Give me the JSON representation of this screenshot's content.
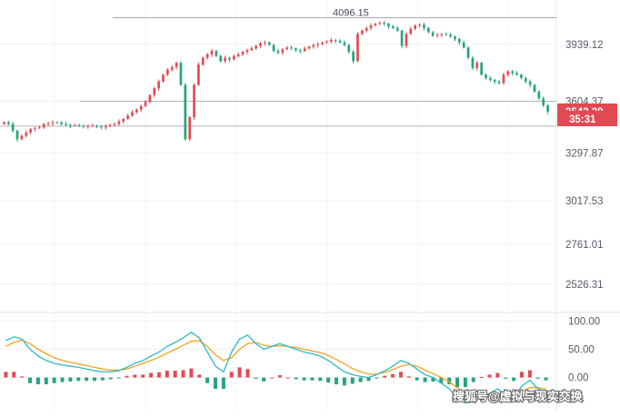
{
  "chart_data": [
    {
      "type": "candlestick",
      "panel": "price",
      "y_axis": {
        "ticks": [
          "3939.12",
          "3604.37",
          "3297.87",
          "3017.53",
          "2761.01",
          "2526.31"
        ],
        "tick_values": [
          3939.12,
          3604.37,
          3297.87,
          3017.53,
          2761.01,
          2526.31
        ],
        "range": [
          2360,
          4200
        ],
        "position": "right"
      },
      "annotations": {
        "high_label": "4096.15",
        "high_value": 4096.15,
        "price_line_value": 3604.37,
        "support_value": 3457
      },
      "last_price": {
        "label": "3542.39",
        "value": 3542.39,
        "color": "#e24a52"
      },
      "countdown": {
        "label": "35:31",
        "color": "#e24a52"
      },
      "up_color": "#e24a52",
      "down_color": "#27a37f",
      "closes": [
        3480,
        3470,
        3430,
        3380,
        3400,
        3420,
        3440,
        3445,
        3450,
        3470,
        3475,
        3480,
        3478,
        3470,
        3465,
        3460,
        3462,
        3460,
        3456,
        3458,
        3460,
        3455,
        3450,
        3458,
        3465,
        3470,
        3485,
        3500,
        3520,
        3540,
        3555,
        3575,
        3600,
        3640,
        3680,
        3720,
        3760,
        3790,
        3805,
        3830,
        3700,
        3380,
        3510,
        3700,
        3820,
        3860,
        3880,
        3900,
        3870,
        3840,
        3860,
        3850,
        3870,
        3880,
        3895,
        3905,
        3915,
        3930,
        3945,
        3950,
        3935,
        3900,
        3890,
        3910,
        3920,
        3915,
        3905,
        3900,
        3915,
        3925,
        3935,
        3940,
        3950,
        3955,
        3965,
        3960,
        3950,
        3935,
        3895,
        3840,
        4000,
        4020,
        4035,
        4050,
        4060,
        4065,
        4060,
        4045,
        4035,
        4020,
        3930,
        4000,
        4030,
        4050,
        4055,
        4035,
        4010,
        3990,
        3995,
        4000,
        3995,
        3985,
        3970,
        3950,
        3920,
        3860,
        3800,
        3830,
        3760,
        3740,
        3730,
        3720,
        3710,
        3760,
        3780,
        3770,
        3760,
        3740,
        3720,
        3700,
        3660,
        3620,
        3580,
        3542.39
      ]
    },
    {
      "type": "line",
      "panel": "oscillator",
      "y_axis": {
        "ticks": [
          "100.00",
          "50.00",
          "0.00"
        ],
        "tick_values": [
          100,
          50,
          0
        ],
        "range": [
          -60,
          115
        ],
        "position": "right"
      },
      "series": [
        {
          "color": "#31b8c6",
          "values": [
            65,
            72,
            68,
            50,
            38,
            30,
            25,
            22,
            20,
            18,
            15,
            12,
            10,
            10,
            12,
            18,
            25,
            30,
            38,
            45,
            55,
            62,
            70,
            80,
            70,
            45,
            20,
            10,
            45,
            68,
            75,
            60,
            50,
            55,
            60,
            55,
            50,
            45,
            42,
            38,
            30,
            20,
            10,
            5,
            2,
            0,
            5,
            12,
            20,
            30,
            25,
            15,
            5,
            0,
            -10,
            -20,
            -35,
            -45,
            -42,
            -35,
            -28,
            -20,
            -30,
            -38,
            -15,
            -5,
            -20,
            -25
          ]
        },
        {
          "color": "#f2a31c",
          "values": [
            55,
            62,
            66,
            60,
            50,
            42,
            35,
            30,
            27,
            24,
            21,
            18,
            15,
            13,
            13,
            15,
            20,
            25,
            30,
            36,
            43,
            50,
            57,
            64,
            65,
            55,
            40,
            30,
            35,
            50,
            60,
            62,
            57,
            55,
            56,
            55,
            53,
            50,
            47,
            44,
            39,
            32,
            24,
            16,
            10,
            6,
            6,
            9,
            14,
            20,
            23,
            20,
            13,
            7,
            0,
            -8,
            -18,
            -28,
            -34,
            -36,
            -33,
            -28,
            -28,
            -32,
            -25,
            -18,
            -18,
            -20
          ]
        },
        {
          "color": "#e24a52",
          "type": "histogram",
          "values": [
            10,
            10,
            2,
            -10,
            -12,
            -12,
            -10,
            -8,
            -7,
            -6,
            -6,
            -6,
            -5,
            -3,
            -1,
            3,
            5,
            5,
            8,
            9,
            12,
            12,
            13,
            16,
            5,
            -10,
            -20,
            -20,
            10,
            18,
            15,
            -2,
            -7,
            0,
            4,
            0,
            -3,
            -5,
            -5,
            -6,
            -9,
            -12,
            -14,
            -11,
            -8,
            -6,
            -1,
            3,
            6,
            10,
            2,
            -5,
            -8,
            -7,
            -10,
            -12,
            -17,
            -17,
            -8,
            1,
            5,
            8,
            -2,
            -6,
            10,
            13,
            -2,
            -5
          ]
        }
      ]
    }
  ],
  "watermark": {
    "text": "搜狐号@虚拟与现实交换"
  }
}
